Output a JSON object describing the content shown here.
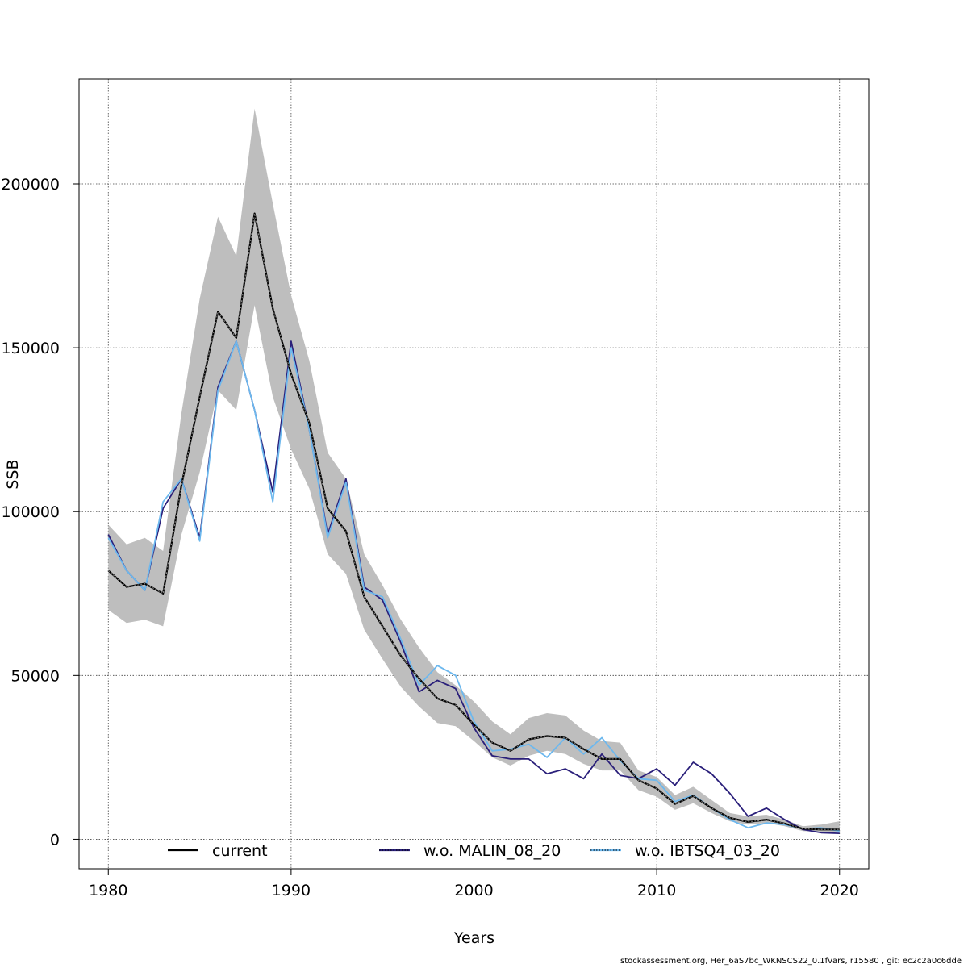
{
  "chart_data": {
    "type": "line",
    "xlabel": "Years",
    "ylabel": "SSB",
    "xlim": [
      1978.4,
      2021.6
    ],
    "ylim": [
      -9000,
      232000
    ],
    "xticks": [
      1980,
      1990,
      2000,
      2010,
      2020
    ],
    "yticks": [
      0,
      50000,
      100000,
      150000,
      200000
    ],
    "grid": true,
    "legend_position": "bottom",
    "x": [
      1980,
      1981,
      1982,
      1983,
      1984,
      1985,
      1986,
      1987,
      1988,
      1989,
      1990,
      1991,
      1992,
      1993,
      1994,
      1995,
      1996,
      1997,
      1998,
      1999,
      2000,
      2001,
      2002,
      2003,
      2004,
      2005,
      2006,
      2007,
      2008,
      2009,
      2010,
      2011,
      2012,
      2013,
      2014,
      2015,
      2016,
      2017,
      2018,
      2019,
      2020
    ],
    "band": {
      "color": "#bebebe",
      "lower": [
        70000,
        66000,
        67000,
        65000,
        93000,
        112000,
        137000,
        131000,
        163000,
        135000,
        119000,
        107000,
        87000,
        81000,
        64000,
        55000,
        46500,
        40500,
        35500,
        34500,
        30000,
        25000,
        22500,
        25500,
        27000,
        26000,
        23000,
        21000,
        21000,
        15000,
        13000,
        9000,
        11000,
        8000,
        5500,
        4500,
        5000,
        4000,
        2500,
        2300,
        2000
      ],
      "upper": [
        96000,
        90000,
        92000,
        88000,
        130000,
        165000,
        190000,
        178000,
        223000,
        194000,
        166000,
        146000,
        118000,
        110000,
        87000,
        77500,
        67000,
        58500,
        51000,
        47000,
        42000,
        36000,
        32000,
        37000,
        38500,
        37800,
        33200,
        30000,
        29500,
        21000,
        19000,
        13500,
        16000,
        12000,
        8000,
        7000,
        7500,
        6000,
        4000,
        4500,
        5500
      ]
    },
    "series": [
      {
        "name": "current",
        "color": "#000000",
        "style": "solid",
        "values": [
          82000,
          77000,
          78000,
          75000,
          108000,
          135000,
          161000,
          153000,
          191000,
          162000,
          142000,
          127000,
          101000,
          94000,
          74000,
          65000,
          56000,
          49000,
          43000,
          41000,
          35000,
          29500,
          27000,
          30500,
          31500,
          31000,
          27500,
          24500,
          24500,
          18000,
          15500,
          10800,
          13200,
          9500,
          6500,
          5300,
          6000,
          4800,
          3200,
          3000,
          3000
        ]
      },
      {
        "name": "w.o. MALIN_08_20",
        "color": "#2a1f7a",
        "style": "solid",
        "values": [
          93000,
          82000,
          76000,
          101000,
          110000,
          92000,
          138000,
          152000,
          131000,
          106000,
          152000,
          125000,
          93000,
          110000,
          77000,
          73000,
          60000,
          45000,
          48500,
          46000,
          34000,
          25500,
          24500,
          24500,
          20000,
          21500,
          18500,
          26000,
          19500,
          18500,
          21500,
          16500,
          23500,
          20000,
          14000,
          7000,
          9500,
          6000,
          3000,
          2000,
          1800
        ]
      },
      {
        "name": "w.o. IBTSQ4_03_20",
        "color": "#6db8ee",
        "style": "solid",
        "values": [
          92000,
          82000,
          76000,
          103000,
          110000,
          91000,
          137000,
          152000,
          131000,
          103000,
          150000,
          125000,
          92000,
          109000,
          76000,
          74000,
          61000,
          47000,
          53000,
          50000,
          36000,
          27000,
          27500,
          29000,
          25000,
          31000,
          26000,
          31000,
          24000,
          18500,
          18000,
          11500,
          13500,
          9500,
          6000,
          3500,
          5000,
          4500,
          3200,
          3500,
          2500
        ]
      }
    ]
  },
  "footer": "stockassessment.org, Her_6aS7bc_WKNSCS22_0.1fvars, r15580 , git: ec2c2a0c6dde"
}
